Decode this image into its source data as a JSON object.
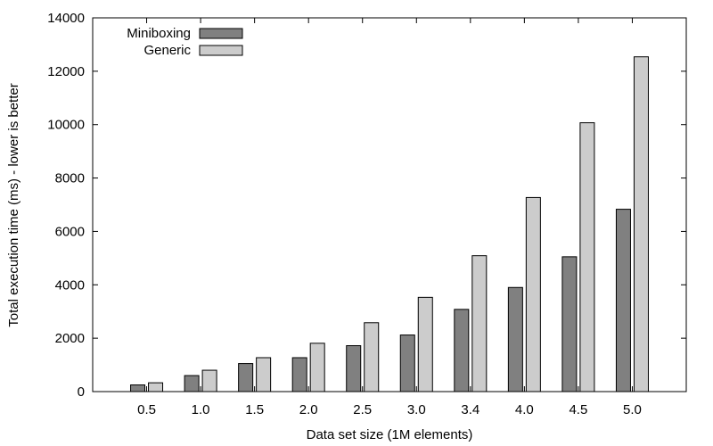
{
  "chart_data": {
    "type": "bar",
    "title": "",
    "xlabel": "Data set size (1M elements)",
    "ylabel": "Total execution time (ms) - lower is better",
    "categories": [
      "0.5",
      "1.0",
      "1.5",
      "2.0",
      "2.5",
      "3.0",
      "3.4",
      "4.0",
      "4.5",
      "5.0"
    ],
    "ylim": [
      0,
      14000
    ],
    "yticks": [
      0,
      2000,
      4000,
      6000,
      8000,
      10000,
      12000,
      14000
    ],
    "grid": false,
    "legend_position": "top-left",
    "series": [
      {
        "name": "Miniboxing",
        "color": "#808080",
        "values": [
          250,
          600,
          1050,
          1270,
          1720,
          2120,
          3080,
          3900,
          5050,
          6830
        ]
      },
      {
        "name": "Generic",
        "color": "#cccccc",
        "values": [
          330,
          800,
          1270,
          1810,
          2580,
          3530,
          5090,
          7270,
          10070,
          12540
        ]
      }
    ]
  }
}
